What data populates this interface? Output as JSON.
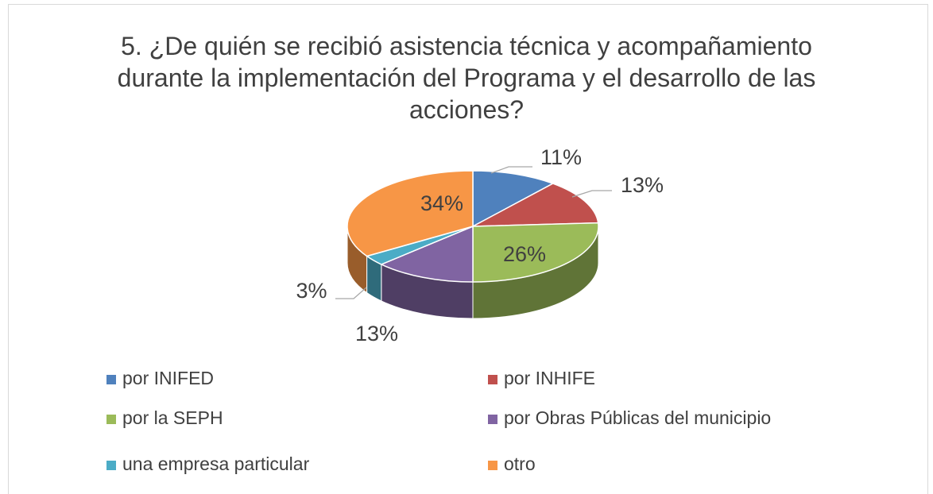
{
  "chart_data": {
    "type": "pie",
    "title": "5. ¿De quién se recibió asistencia técnica y acompañamiento durante la implementación del Programa y el desarrollo de las acciones?",
    "categories": [
      "por INIFED",
      "por INHIFE",
      "por la SEPH",
      "por Obras Públicas del municipio",
      "una empresa particular",
      "otro"
    ],
    "values": [
      11,
      13,
      26,
      13,
      3,
      34
    ],
    "value_labels": [
      "11%",
      "13%",
      "26%",
      "13%",
      "3%",
      "34%"
    ],
    "colors": [
      "#4f81bd",
      "#c0504d",
      "#9bbb59",
      "#8064a2",
      "#4bacc6",
      "#f79646"
    ],
    "legend": "bottom"
  }
}
